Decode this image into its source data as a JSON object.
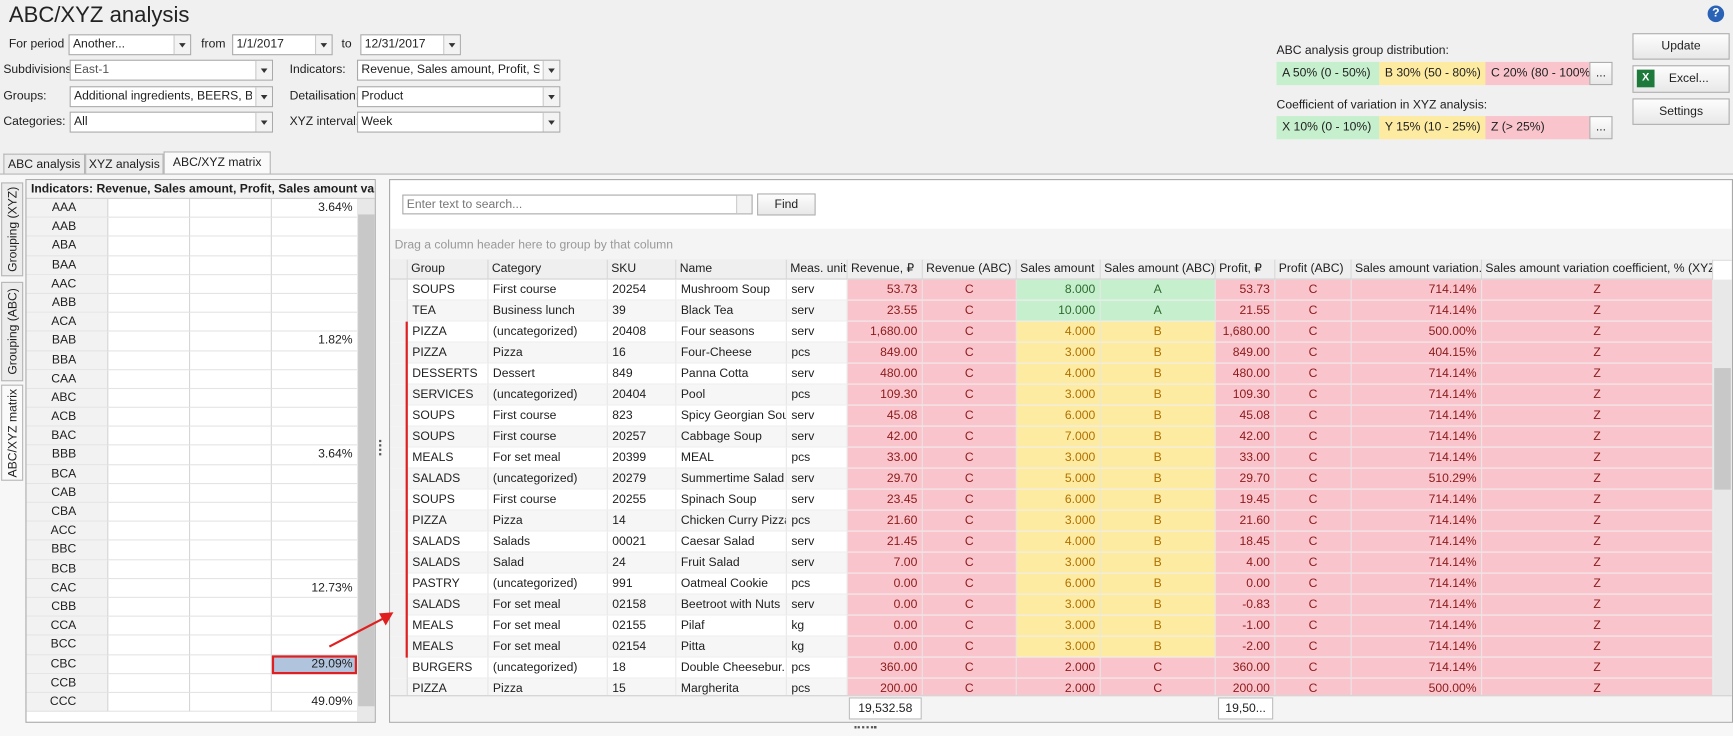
{
  "header": {
    "title": "ABC/XYZ analysis"
  },
  "filters": {
    "for_period_label": "For period",
    "period": "Another...",
    "from_label": "from",
    "from": "1/1/2017",
    "to_label": "to",
    "to": "12/31/2017",
    "subdivisions_label": "Subdivisions:",
    "subdivisions": "East-1",
    "indicators_label": "Indicators:",
    "indicators": "Revenue, Sales amount, Profit, Sa...",
    "groups_label": "Groups:",
    "groups": "Additional ingredients, BEERS, BEV...",
    "detailisation_label": "Detailisation:",
    "detailisation": "Product",
    "categories_label": "Categories:",
    "categories": "All",
    "xyz_interval_label": "XYZ interval:",
    "xyz_interval": "Week"
  },
  "distribution": {
    "abc_label": "ABC analysis group distribution:",
    "abc": [
      "A 50% (0 - 50%)",
      "B 30% (50 - 80%)",
      "C 20% (80 - 100%)"
    ],
    "xyz_label": "Coefficient of variation in XYZ analysis:",
    "xyz": [
      "X 10% (0 - 10%)",
      "Y 15% (10 - 25%)",
      "Z  (> 25%)"
    ],
    "more_button": "..."
  },
  "buttons": {
    "update": "Update",
    "excel": "Excel...",
    "settings": "Settings"
  },
  "tabs": [
    "ABC analysis",
    "XYZ analysis",
    "ABC/XYZ matrix"
  ],
  "side_tabs": [
    "Grouping (XYZ)",
    "Grouping (ABC)",
    "ABC/XYZ matrix"
  ],
  "matrix": {
    "header": "Indicators: Revenue, Sales amount, Profit, Sales amount vari",
    "rows": [
      {
        "code": "AAA",
        "value": "3.64%"
      },
      {
        "code": "AAB"
      },
      {
        "code": "ABA"
      },
      {
        "code": "BAA"
      },
      {
        "code": "AAC"
      },
      {
        "code": "ABB"
      },
      {
        "code": "ACA"
      },
      {
        "code": "BAB",
        "value": "1.82%"
      },
      {
        "code": "BBA"
      },
      {
        "code": "CAA"
      },
      {
        "code": "ABC"
      },
      {
        "code": "ACB"
      },
      {
        "code": "BAC"
      },
      {
        "code": "BBB",
        "value": "3.64%"
      },
      {
        "code": "BCA"
      },
      {
        "code": "CAB"
      },
      {
        "code": "CBA"
      },
      {
        "code": "ACC"
      },
      {
        "code": "BBC"
      },
      {
        "code": "BCB"
      },
      {
        "code": "CAC",
        "value": "12.73%"
      },
      {
        "code": "CBB"
      },
      {
        "code": "CCA"
      },
      {
        "code": "BCC"
      },
      {
        "code": "CBC",
        "value": "29.09%"
      },
      {
        "code": "CCB"
      },
      {
        "code": "CCC",
        "value": "49.09%"
      }
    ]
  },
  "search": {
    "placeholder": "Enter text to search...",
    "button": "Find"
  },
  "table": {
    "group_hint": "Drag a column header here to group by that column",
    "columns": [
      "Group",
      "Category",
      "SKU",
      "Name",
      "Meas. unit",
      "Revenue, ₽",
      "Revenue (ABC)",
      "Sales amount",
      "Sales amount (ABC)",
      "Profit, ₽",
      "Profit (ABC)",
      "Sales amount variation...",
      "Sales amount variation coefficient, % (XYZ)"
    ],
    "rows": [
      [
        "SOUPS",
        "First course",
        "20254",
        "Mushroom Soup",
        "serv",
        "53.73",
        "C",
        "8.000",
        "A",
        "53.73",
        "C",
        "714.14%",
        "Z"
      ],
      [
        "TEA",
        "Business lunch",
        "39",
        "Black Tea",
        "serv",
        "23.55",
        "C",
        "10.000",
        "A",
        "21.55",
        "C",
        "714.14%",
        "Z"
      ],
      [
        "PIZZA",
        "(uncategorized)",
        "20408",
        "Four seasons",
        "serv",
        "1,680.00",
        "C",
        "4.000",
        "B",
        "1,680.00",
        "C",
        "500.00%",
        "Z"
      ],
      [
        "PIZZA",
        "Pizza",
        "16",
        "Four-Cheese",
        "pcs",
        "849.00",
        "C",
        "3.000",
        "B",
        "849.00",
        "C",
        "404.15%",
        "Z"
      ],
      [
        "DESSERTS",
        "Dessert",
        "849",
        "Panna Cotta",
        "serv",
        "480.00",
        "C",
        "4.000",
        "B",
        "480.00",
        "C",
        "714.14%",
        "Z"
      ],
      [
        "SERVICES",
        "(uncategorized)",
        "20404",
        "Pool",
        "pcs",
        "109.30",
        "C",
        "3.000",
        "B",
        "109.30",
        "C",
        "714.14%",
        "Z"
      ],
      [
        "SOUPS",
        "First course",
        "823",
        "Spicy Georgian Soup",
        "serv",
        "45.08",
        "C",
        "6.000",
        "B",
        "45.08",
        "C",
        "714.14%",
        "Z"
      ],
      [
        "SOUPS",
        "First course",
        "20257",
        "Cabbage Soup",
        "serv",
        "42.00",
        "C",
        "7.000",
        "B",
        "42.00",
        "C",
        "714.14%",
        "Z"
      ],
      [
        "MEALS",
        "For set meal",
        "20399",
        "MEAL",
        "pcs",
        "33.00",
        "C",
        "3.000",
        "B",
        "33.00",
        "C",
        "714.14%",
        "Z"
      ],
      [
        "SALADS",
        "(uncategorized)",
        "20279",
        "Summertime Salad",
        "serv",
        "29.70",
        "C",
        "5.000",
        "B",
        "29.70",
        "C",
        "510.29%",
        "Z"
      ],
      [
        "SOUPS",
        "First course",
        "20255",
        "Spinach Soup",
        "serv",
        "23.45",
        "C",
        "6.000",
        "B",
        "19.45",
        "C",
        "714.14%",
        "Z"
      ],
      [
        "PIZZA",
        "Pizza",
        "14",
        "Chicken Curry Pizza",
        "pcs",
        "21.60",
        "C",
        "3.000",
        "B",
        "21.60",
        "C",
        "714.14%",
        "Z"
      ],
      [
        "SALADS",
        "Salads",
        "00021",
        "Caesar Salad",
        "serv",
        "21.45",
        "C",
        "4.000",
        "B",
        "18.45",
        "C",
        "714.14%",
        "Z"
      ],
      [
        "SALADS",
        "Salad",
        "24",
        "Fruit Salad",
        "serv",
        "7.00",
        "C",
        "3.000",
        "B",
        "4.00",
        "C",
        "714.14%",
        "Z"
      ],
      [
        "PASTRY",
        "(uncategorized)",
        "991",
        "Oatmeal Cookie",
        "pcs",
        "0.00",
        "C",
        "6.000",
        "B",
        "0.00",
        "C",
        "714.14%",
        "Z"
      ],
      [
        "SALADS",
        "For set meal",
        "02158",
        "Beetroot with Nuts",
        "serv",
        "0.00",
        "C",
        "3.000",
        "B",
        "-0.83",
        "C",
        "714.14%",
        "Z"
      ],
      [
        "MEALS",
        "For set meal",
        "02155",
        "Pilaf",
        "kg",
        "0.00",
        "C",
        "3.000",
        "B",
        "-1.00",
        "C",
        "714.14%",
        "Z"
      ],
      [
        "MEALS",
        "For set meal",
        "02154",
        "Pitta",
        "kg",
        "0.00",
        "C",
        "3.000",
        "B",
        "-2.00",
        "C",
        "714.14%",
        "Z"
      ],
      [
        "BURGERS",
        "(uncategorized)",
        "18",
        "Double Cheesebur...",
        "pcs",
        "360.00",
        "C",
        "2.000",
        "C",
        "360.00",
        "C",
        "714.14%",
        "Z"
      ],
      [
        "PIZZA",
        "Pizza",
        "15",
        "Margherita",
        "pcs",
        "200.00",
        "C",
        "2.000",
        "C",
        "200.00",
        "C",
        "500.00%",
        "Z"
      ]
    ],
    "totals": {
      "revenue": "19,532.58",
      "profit": "19,50..."
    }
  }
}
